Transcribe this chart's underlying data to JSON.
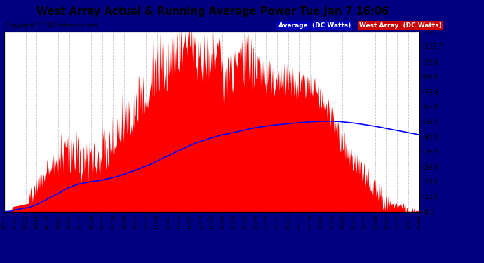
{
  "title": "West Array Actual & Running Average Power Tue Jan 7 16:06",
  "copyright": "Copyright 2014 Cartronics.com",
  "ylabel_right_ticks": [
    0.0,
    10.0,
    20.0,
    29.9,
    39.9,
    49.9,
    59.9,
    69.8,
    79.8,
    89.8,
    99.8,
    109.7,
    119.7
  ],
  "ylim": [
    0.0,
    119.7
  ],
  "xtick_labels": [
    "07:44",
    "07:57",
    "08:12",
    "08:25",
    "08:38",
    "08:51",
    "09:04",
    "09:17",
    "09:30",
    "09:43",
    "09:56",
    "10:09",
    "10:22",
    "10:35",
    "10:48",
    "11:01",
    "11:14",
    "11:27",
    "11:40",
    "11:53",
    "12:06",
    "12:19",
    "12:32",
    "12:45",
    "12:58",
    "13:11",
    "13:24",
    "13:37",
    "13:50",
    "14:03",
    "14:16",
    "14:29",
    "14:42",
    "14:55",
    "15:08",
    "15:21",
    "15:34",
    "15:47",
    "16:00"
  ],
  "legend_labels": [
    "Average  (DC Watts)",
    "West Array  (DC Watts)"
  ],
  "bar_color": "#ff0000",
  "line_color": "#0000ff",
  "bg_color": "#000080",
  "plot_bg_color": "#ffffff",
  "grid_color": "#c0c0c0",
  "avg_legend_bg": "#0000cc",
  "west_legend_bg": "#cc0000"
}
